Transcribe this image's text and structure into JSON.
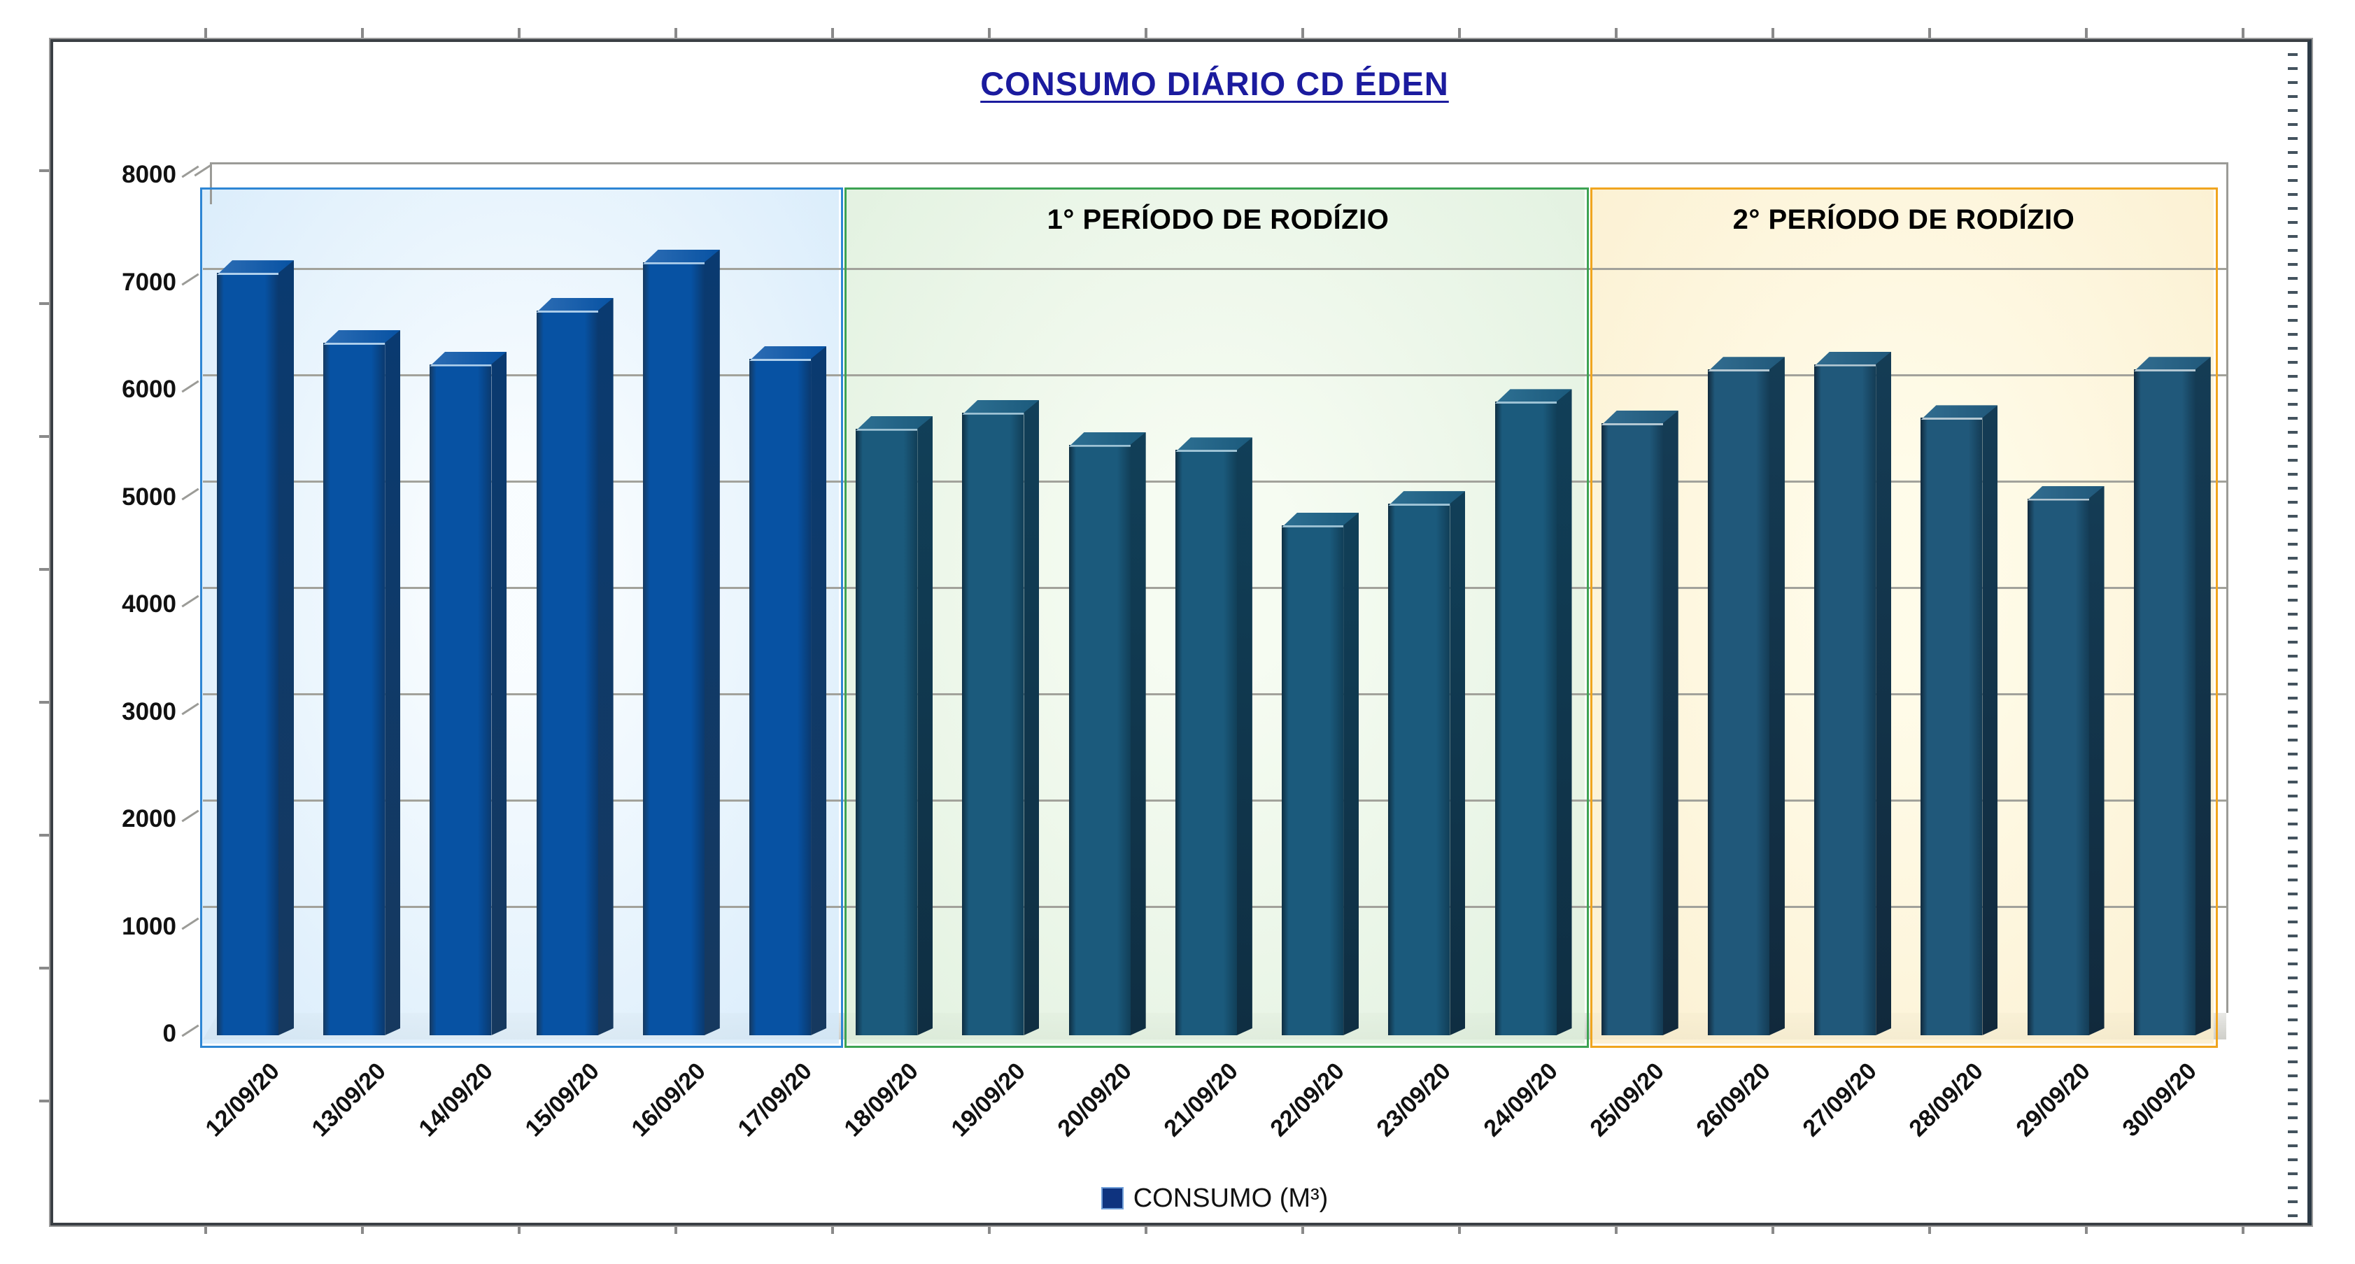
{
  "title": "CONSUMO DIÁRIO CD ÉDEN",
  "title_color": "#1b1b9e",
  "legend": {
    "label": "CONSUMO (M³)",
    "marker_color": "#0e337f"
  },
  "y_axis": {
    "min": 0,
    "max": 8000,
    "step": 1000,
    "tick_labels": [
      "8000",
      "7000",
      "6000",
      "5000",
      "4000",
      "3000",
      "2000",
      "1000",
      "0"
    ]
  },
  "regions": [
    {
      "label": "",
      "start_index": 0,
      "end_index": 5,
      "fill": "#d3e9fa",
      "fill_light": "#f7fcff",
      "border": "#2e86d4",
      "bar_front": "#0752a3",
      "bar_side": "#0a3a70",
      "bar_top": "#2d6db4",
      "bar_edge": "#16395f",
      "bar_topline": "#aecfec"
    },
    {
      "label": "1° PERÍODO DE RODÍZIO",
      "start_index": 6,
      "end_index": 12,
      "fill": "#ddefdb",
      "fill_light": "#f4fbef",
      "border": "#3da353",
      "bar_front": "#1b5a7c",
      "bar_side": "#113f58",
      "bar_top": "#2e7093",
      "bar_edge": "#0f2e42",
      "bar_topline": "#9dc2d4"
    },
    {
      "label": "2° PERÍODO DE RODÍZIO",
      "start_index": 13,
      "end_index": 18,
      "fill": "#fbeecb",
      "fill_light": "#fffbe4",
      "border": "#f0a51f",
      "bar_front": "#20587a",
      "bar_side": "#143c55",
      "bar_top": "#326d90",
      "bar_edge": "#11293c",
      "bar_topline": "#b3c7d2"
    }
  ],
  "chart_data": {
    "type": "bar",
    "title": "CONSUMO DIÁRIO CD ÉDEN",
    "categories": [
      "12/09/20",
      "13/09/20",
      "14/09/20",
      "15/09/20",
      "16/09/20",
      "17/09/20",
      "18/09/20",
      "19/09/20",
      "20/09/20",
      "21/09/20",
      "22/09/20",
      "23/09/20",
      "24/09/20",
      "25/09/20",
      "26/09/20",
      "27/09/20",
      "28/09/20",
      "29/09/20",
      "30/09/20"
    ],
    "values": [
      7100,
      6450,
      6250,
      6750,
      7200,
      6300,
      5650,
      5800,
      5500,
      5450,
      4750,
      4950,
      5900,
      5700,
      6200,
      6250,
      5750,
      5000,
      6200
    ],
    "series_name": "CONSUMO (M³)",
    "xlabel": "",
    "ylabel": "",
    "ylim": [
      0,
      8000
    ],
    "ytick_step": 1000,
    "grid": true,
    "legend_position": "bottom",
    "annotations": [
      "1° PERÍODO DE RODÍZIO",
      "2° PERÍODO DE RODÍZIO"
    ],
    "style": "3d-column-excel"
  }
}
